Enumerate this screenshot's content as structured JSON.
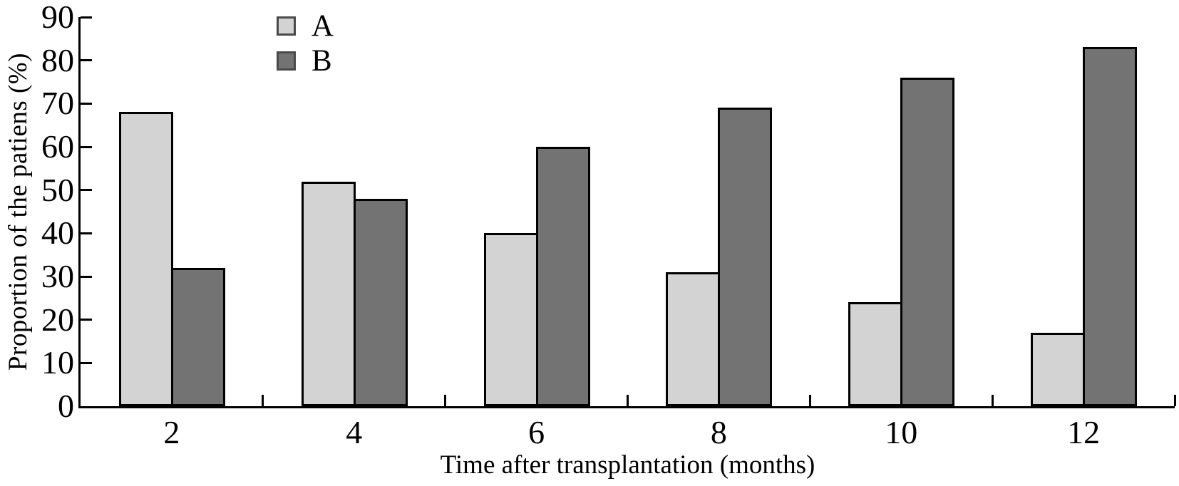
{
  "chart_data": {
    "type": "bar",
    "title": "",
    "xlabel": "Time after transplantation (months)",
    "ylabel": "Proportion of the patiens (%)",
    "categories": [
      "2",
      "4",
      "6",
      "8",
      "10",
      "12"
    ],
    "series": [
      {
        "name": "A",
        "color": "#d3d3d3",
        "values": [
          68,
          52,
          40,
          31,
          24,
          17
        ]
      },
      {
        "name": "B",
        "color": "#737373",
        "values": [
          32,
          48,
          60,
          69,
          76,
          83
        ]
      }
    ],
    "ylim": [
      0,
      90
    ],
    "yticks": [
      0,
      10,
      20,
      30,
      40,
      50,
      60,
      70,
      80,
      90
    ],
    "grid": false,
    "legend_position": "top-inside-left",
    "bar_edge_color": "#000000",
    "background_color": "#ffffff",
    "text_color": "#000000"
  }
}
